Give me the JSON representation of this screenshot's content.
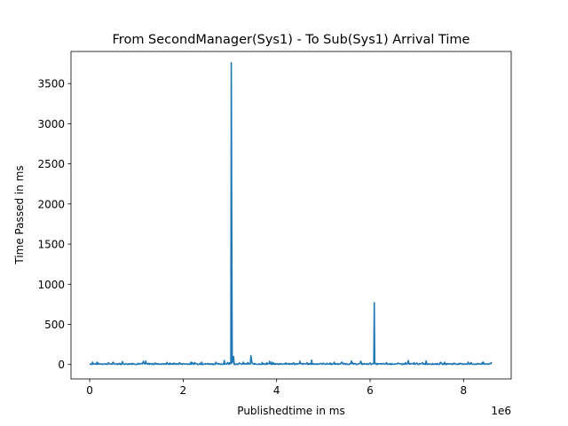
{
  "chart_data": {
    "type": "line",
    "title": "From SecondManager(Sys1) - To Sub(Sys1) Arrival Time",
    "xlabel": "Publishedtime in ms",
    "ylabel": "Time Passed in ms",
    "x_offset_label": "1e6",
    "xlim": [
      -400000,
      9020000
    ],
    "ylim": [
      -180,
      3900
    ],
    "x_ticks": [
      0,
      2000000,
      4000000,
      6000000,
      8000000
    ],
    "x_tick_labels": [
      "0",
      "2",
      "4",
      "6",
      "8"
    ],
    "y_ticks": [
      0,
      500,
      1000,
      1500,
      2000,
      2500,
      3000,
      3500
    ],
    "y_tick_labels": [
      "0",
      "500",
      "1000",
      "1500",
      "2000",
      "2500",
      "3000",
      "3500"
    ],
    "grid": false,
    "series": [
      {
        "color": "#1f77b4",
        "baseline_noise": [
          0,
          30
        ],
        "points": [
          [
            0,
            10
          ],
          [
            60000,
            30
          ],
          [
            180000,
            18
          ],
          [
            400000,
            22
          ],
          [
            700000,
            35
          ],
          [
            900000,
            15
          ],
          [
            1150000,
            40
          ],
          [
            1200000,
            45
          ],
          [
            1400000,
            20
          ],
          [
            1800000,
            18
          ],
          [
            2250000,
            25
          ],
          [
            2400000,
            30
          ],
          [
            2700000,
            28
          ],
          [
            2880000,
            50
          ],
          [
            2950000,
            25
          ],
          [
            3020000,
            10
          ],
          [
            3030000,
            3760
          ],
          [
            3040000,
            1700
          ],
          [
            3050000,
            20
          ],
          [
            3080000,
            100
          ],
          [
            3200000,
            20
          ],
          [
            3450000,
            110
          ],
          [
            3470000,
            30
          ],
          [
            3850000,
            40
          ],
          [
            4200000,
            15
          ],
          [
            4500000,
            40
          ],
          [
            4750000,
            55
          ],
          [
            5000000,
            18
          ],
          [
            5400000,
            30
          ],
          [
            5600000,
            45
          ],
          [
            5800000,
            40
          ],
          [
            6000000,
            20
          ],
          [
            6080000,
            10
          ],
          [
            6090000,
            770
          ],
          [
            6100000,
            10
          ],
          [
            6350000,
            25
          ],
          [
            6600000,
            18
          ],
          [
            6820000,
            50
          ],
          [
            7000000,
            20
          ],
          [
            7200000,
            45
          ],
          [
            7500000,
            25
          ],
          [
            7800000,
            18
          ],
          [
            8100000,
            30
          ],
          [
            8400000,
            25
          ],
          [
            8600000,
            30
          ]
        ]
      }
    ]
  }
}
